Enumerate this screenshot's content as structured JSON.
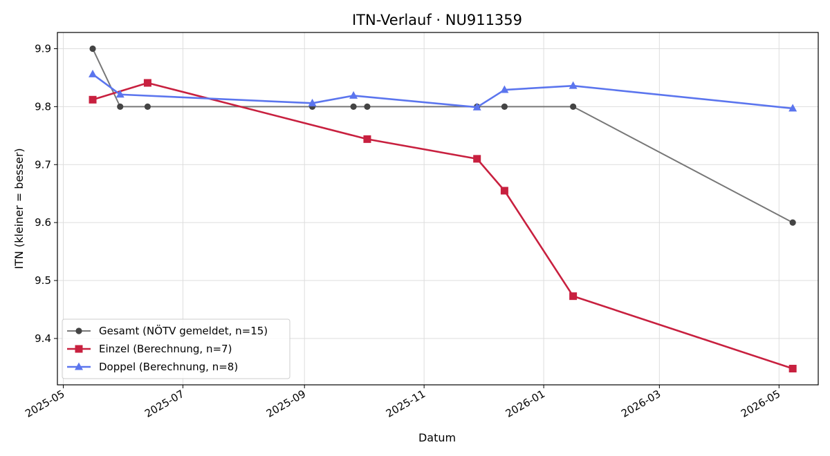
{
  "chart_data": {
    "type": "line",
    "title": "ITN-Verlauf · NU911359",
    "xlabel": "Datum",
    "ylabel": "ITN  (kleiner = besser)",
    "x_ticks": [
      "2025-05",
      "2025-07",
      "2025-09",
      "2025-11",
      "2026-01",
      "2026-03",
      "2026-05"
    ],
    "y_ticks": [
      "9.4",
      "9.5",
      "9.6",
      "9.7",
      "9.8",
      "9.9"
    ],
    "xlim": [
      "2025-04-28",
      "2026-05-21"
    ],
    "ylim": [
      9.32,
      9.928
    ],
    "grid": true,
    "legend_position": "lower-left",
    "series": [
      {
        "name": "Gesamt (NÖTV gemeldet, n=15)",
        "color": "#444444",
        "line_color": "#777777",
        "marker": "circle",
        "points": [
          [
            "2025-05-16",
            9.9
          ],
          [
            "2025-05-30",
            9.8
          ],
          [
            "2025-06-13",
            9.8
          ],
          [
            "2025-09-05",
            9.8
          ],
          [
            "2025-09-26",
            9.8
          ],
          [
            "2025-10-03",
            9.8
          ],
          [
            "2025-11-28",
            9.8
          ],
          [
            "2025-12-12",
            9.8
          ],
          [
            "2026-01-16",
            9.8
          ],
          [
            "2026-05-08",
            9.6
          ]
        ]
      },
      {
        "name": "Einzel (Berechnung, n=7)",
        "color": "#c8203f",
        "line_color": "#c8203f",
        "marker": "square",
        "points": [
          [
            "2025-05-16",
            9.812
          ],
          [
            "2025-06-13",
            9.841
          ],
          [
            "2025-10-03",
            9.744
          ],
          [
            "2025-11-28",
            9.71
          ],
          [
            "2025-12-12",
            9.655
          ],
          [
            "2026-01-16",
            9.473
          ],
          [
            "2026-05-08",
            9.348
          ]
        ]
      },
      {
        "name": "Doppel (Berechnung, n=8)",
        "color": "#5b75ee",
        "line_color": "#5b75ee",
        "marker": "triangle",
        "points": [
          [
            "2025-05-16",
            9.856
          ],
          [
            "2025-05-30",
            9.821
          ],
          [
            "2025-09-05",
            9.806
          ],
          [
            "2025-09-26",
            9.819
          ],
          [
            "2025-11-28",
            9.799
          ],
          [
            "2025-12-12",
            9.829
          ],
          [
            "2026-01-16",
            9.836
          ],
          [
            "2026-05-08",
            9.797
          ]
        ]
      }
    ]
  }
}
